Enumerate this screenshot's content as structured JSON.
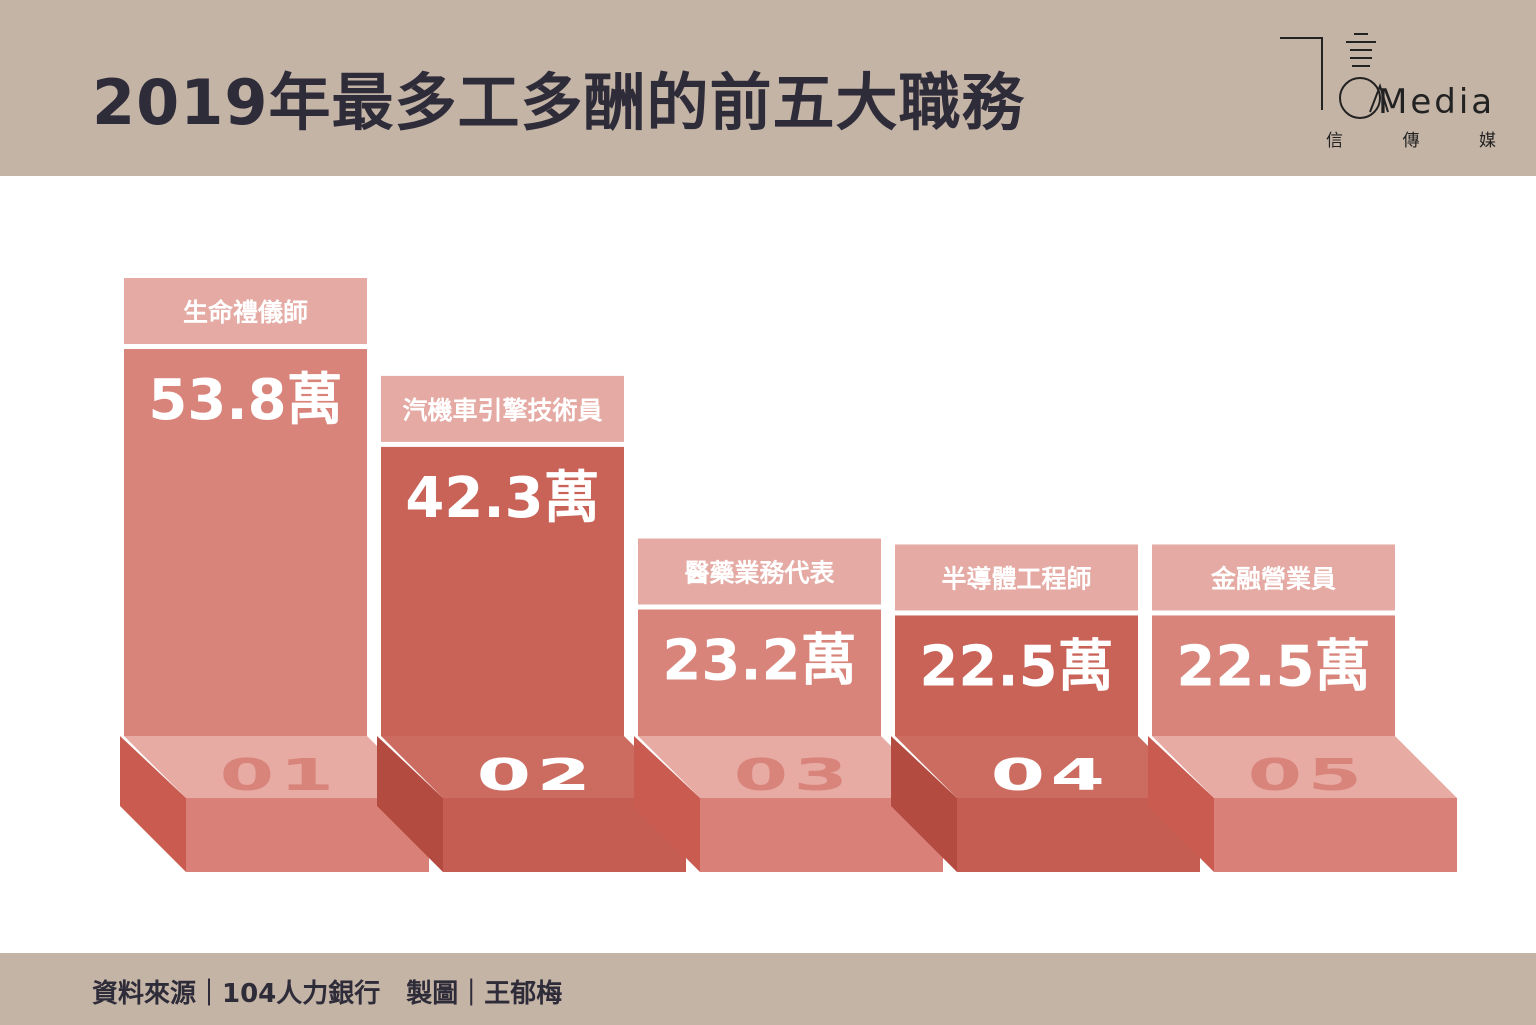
{
  "header": {
    "title": "2019年最多工多酬的前五大職務",
    "logo_text": "Media",
    "logo_sub": [
      "信",
      "傳",
      "媒"
    ]
  },
  "footer": {
    "source": "資料來源｜104人力銀行　製圖｜王郁梅"
  },
  "colors": {
    "light_bar": "#d9847b",
    "dark_bar": "#c96257",
    "label_band": "#e4aaa3",
    "light_front": "#d98178",
    "light_side": "#c95b50",
    "dark_front": "#c65d52",
    "dark_side": "#b44b40",
    "light_top": "#e7aba4",
    "dark_top": "#cc6c60"
  },
  "chart_data": {
    "type": "bar",
    "unit": "萬",
    "categories": [
      "生命禮儀師",
      "汽機車引擎技術員",
      "醫藥業務代表",
      "半導體工程師",
      "金融營業員"
    ],
    "value_labels": [
      "53.8萬",
      "42.3萬",
      "23.2萬",
      "22.5萬",
      "22.5萬"
    ],
    "values": [
      53.8,
      42.3,
      23.2,
      22.5,
      22.5
    ],
    "ranks": [
      "01",
      "02",
      "03",
      "04",
      "05"
    ]
  }
}
